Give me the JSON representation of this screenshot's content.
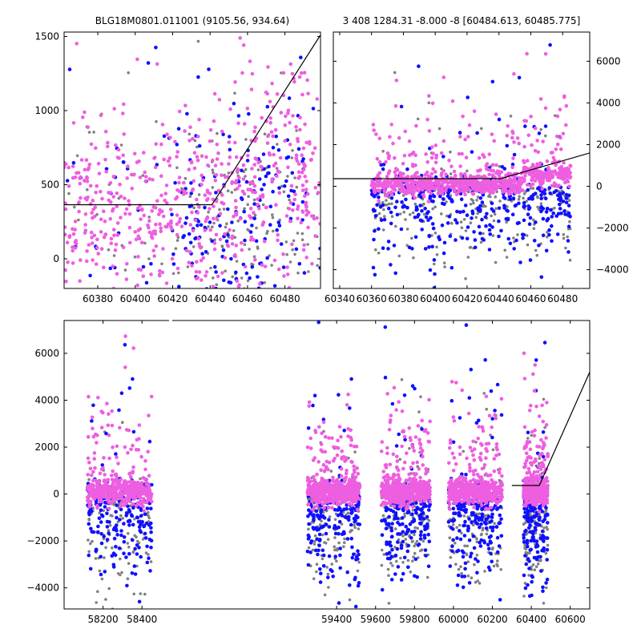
{
  "figure": {
    "title_left": "BLG18M0801.011001 (9105.56, 934.64)",
    "title_right": "3 408 1284.31 -8.000 -8 [60484.613, 60485.775]"
  },
  "colors": {
    "grey": "#808080",
    "blue": "#1010ff",
    "magenta": "#ee5ee0",
    "model_line": "#000000"
  },
  "chart_data": [
    {
      "id": "top-left",
      "type": "scatter",
      "xlim": [
        60362,
        60499
      ],
      "ylim": [
        -200,
        1530
      ],
      "xticks": [
        60380,
        60400,
        60420,
        60440,
        60460,
        60480
      ],
      "yticks": [
        0,
        500,
        1000,
        1500
      ],
      "ytick_side": "left",
      "grid": false,
      "model_line": {
        "x": [
          60362,
          60441,
          60499
        ],
        "y": [
          365,
          365,
          1510
        ]
      },
      "series": [
        {
          "color": "magenta",
          "x_range": [
            60362,
            60499
          ],
          "y_range": [
            -200,
            1530
          ]
        },
        {
          "color": "blue",
          "x_range": [
            60362,
            60499
          ],
          "y_range": [
            -200,
            1530
          ]
        },
        {
          "color": "grey",
          "x_range": [
            60362,
            60499
          ],
          "y_range": [
            -200,
            1530
          ]
        }
      ]
    },
    {
      "id": "top-right",
      "type": "scatter",
      "xlim": [
        60336,
        60497
      ],
      "ylim": [
        -4900,
        7400
      ],
      "xticks": [
        60340,
        60360,
        60380,
        60400,
        60420,
        60440,
        60460,
        60480
      ],
      "yticks": [
        -4000,
        -2000,
        0,
        2000,
        4000,
        6000
      ],
      "ytick_side": "right",
      "grid": false,
      "model_line": {
        "x": [
          60336,
          60441,
          60497
        ],
        "y": [
          365,
          365,
          1600
        ]
      },
      "series": [
        {
          "color": "magenta",
          "x_range": [
            60360,
            60485
          ],
          "y_range": [
            -2000,
            5800
          ]
        },
        {
          "color": "blue",
          "x_range": [
            60360,
            60485
          ],
          "y_range": [
            -4800,
            2000
          ]
        },
        {
          "color": "grey",
          "x_range": [
            60360,
            60485
          ],
          "y_range": [
            -4500,
            2000
          ]
        }
      ]
    },
    {
      "id": "bottom",
      "type": "scatter",
      "xlim": [
        58000,
        60700
      ],
      "ylim": [
        -4900,
        7400
      ],
      "xticks": [
        58200,
        58400,
        59400,
        59600,
        59800,
        60000,
        60200,
        60400,
        60600
      ],
      "yticks": [
        -4000,
        -2000,
        0,
        2000,
        4000,
        6000
      ],
      "ytick_side": "left",
      "grid": false,
      "model_line": {
        "x": [
          60300,
          60441,
          60700
        ],
        "y": [
          365,
          365,
          5200
        ]
      },
      "seasons": [
        {
          "x_range": [
            58120,
            58450
          ]
        },
        {
          "x_range": [
            59250,
            59520
          ]
        },
        {
          "x_range": [
            59630,
            59880
          ]
        },
        {
          "x_range": [
            59975,
            60250
          ]
        },
        {
          "x_range": [
            60360,
            60485
          ]
        }
      ]
    }
  ]
}
